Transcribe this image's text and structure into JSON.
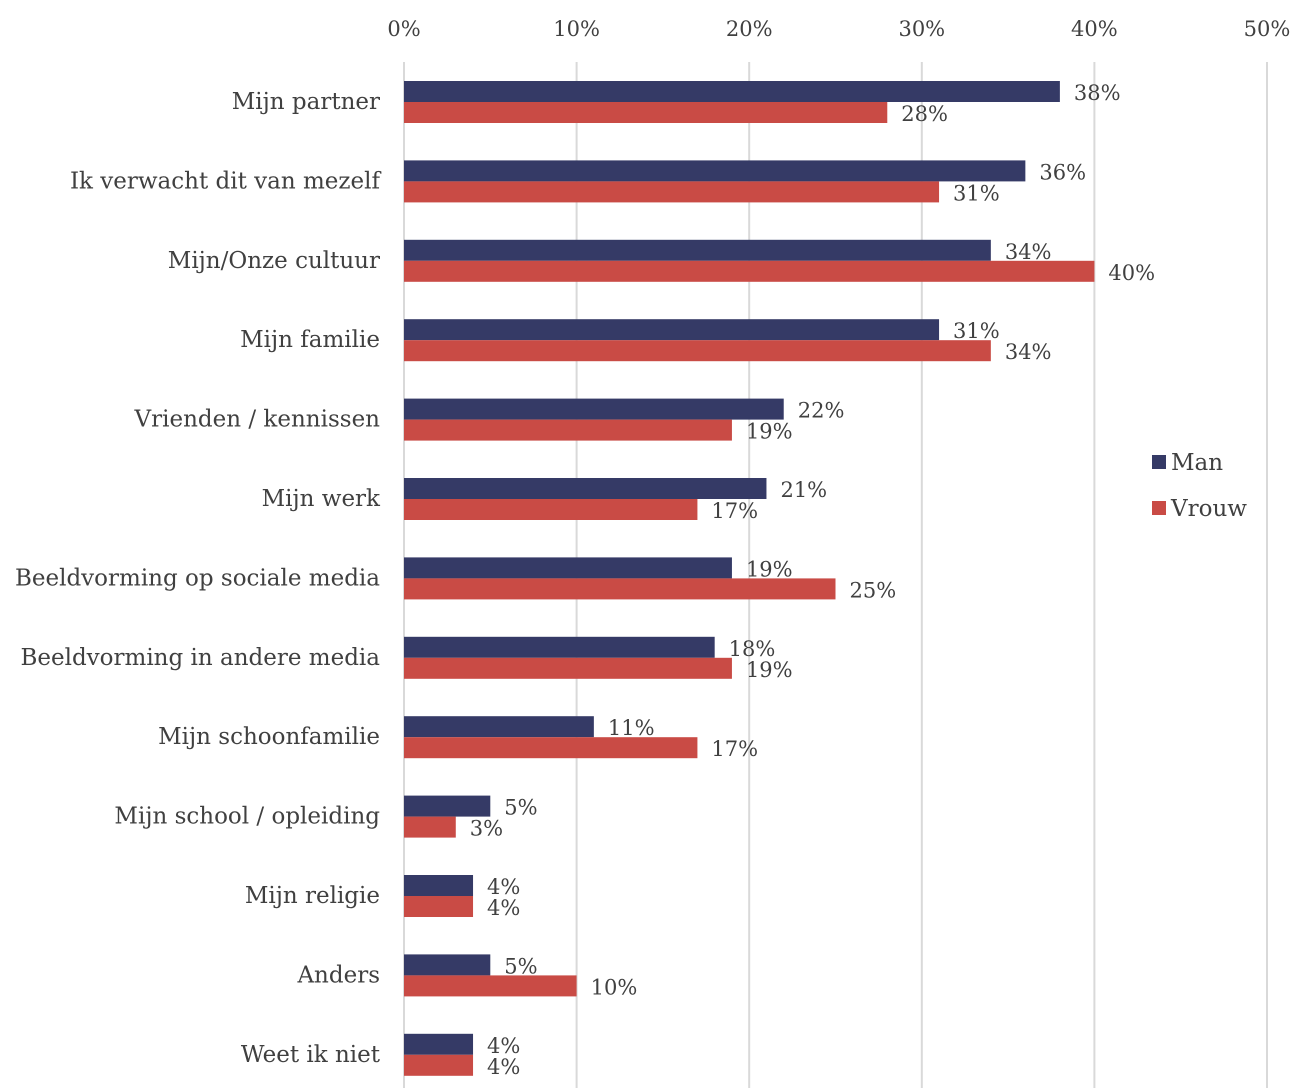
{
  "chart_data": {
    "type": "bar",
    "orientation": "horizontal",
    "categories": [
      "Mijn partner",
      "Ik verwacht dit van mezelf",
      "Mijn/Onze cultuur",
      "Mijn familie",
      "Vrienden / kennissen",
      "Mijn werk",
      "Beeldvorming op sociale media",
      "Beeldvorming in andere media",
      "Mijn schoonfamilie",
      "Mijn school / opleiding",
      "Mijn religie",
      "Anders",
      "Weet ik niet"
    ],
    "series": [
      {
        "name": "Man",
        "color": "#353a66",
        "values": [
          38,
          36,
          34,
          31,
          22,
          21,
          19,
          18,
          11,
          5,
          4,
          5,
          4
        ],
        "labels": [
          "38%",
          "36%",
          "34%",
          "31%",
          "22%",
          "21%",
          "19%",
          "18%",
          "11%",
          "5%",
          "4%",
          "5%",
          "4%"
        ]
      },
      {
        "name": "Vrouw",
        "color": "#c94b45",
        "values": [
          28,
          31,
          40,
          34,
          19,
          17,
          25,
          19,
          17,
          3,
          4,
          10,
          4
        ],
        "labels": [
          "28%",
          "31%",
          "40%",
          "34%",
          "19%",
          "17%",
          "25%",
          "19%",
          "17%",
          "3%",
          "4%",
          "10%",
          "4%"
        ]
      }
    ],
    "xlim": [
      0,
      50
    ],
    "x_ticks": [
      0,
      10,
      20,
      30,
      40,
      50
    ],
    "x_tick_labels": [
      "0%",
      "10%",
      "20%",
      "30%",
      "40%",
      "50%"
    ],
    "x_axis_position": "top",
    "grid": true,
    "grid_color": "#d9d9d9",
    "legend_position": "right"
  }
}
